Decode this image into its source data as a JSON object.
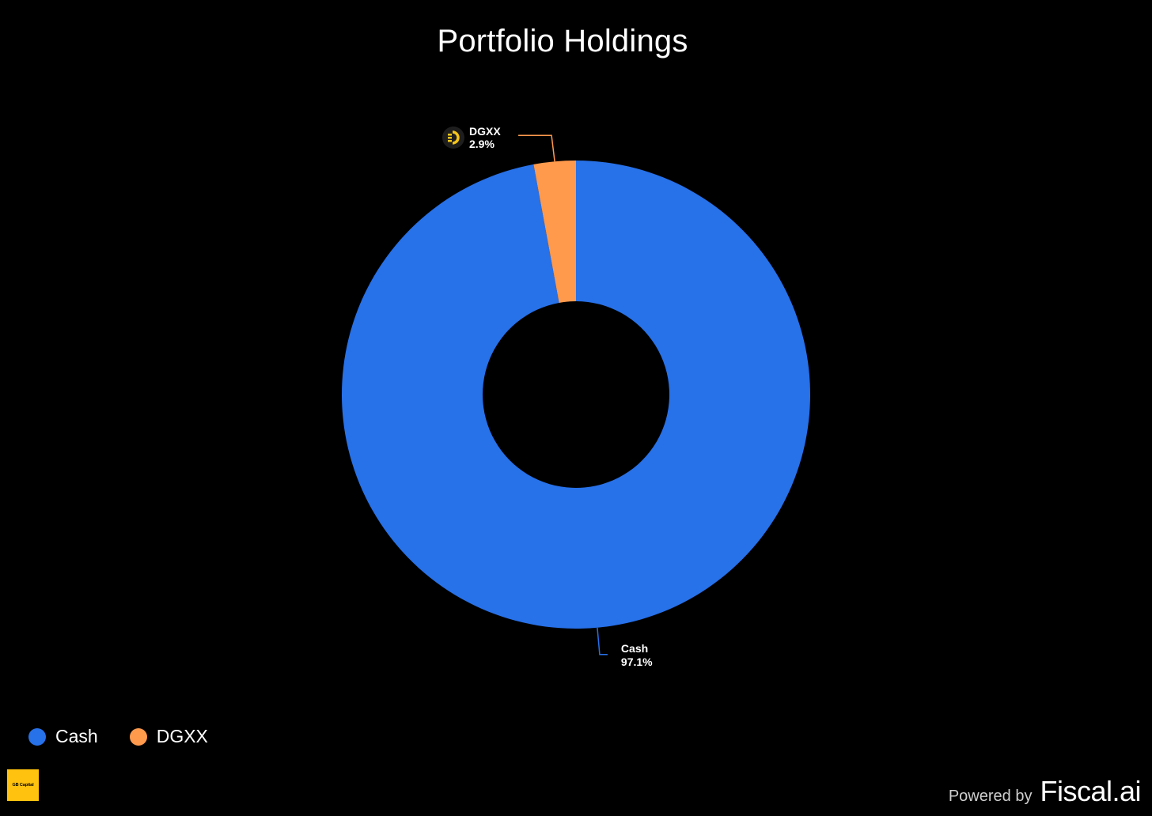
{
  "chart_data": {
    "type": "pie",
    "title": "Portfolio Holdings",
    "donut": true,
    "labels": [
      "Cash",
      "DGXX"
    ],
    "values": [
      97.1,
      2.9
    ],
    "value_labels": [
      "97.1%",
      "2.9%"
    ],
    "colors": [
      "#2771e9",
      "#ff9a4d"
    ],
    "legend_placement": "bottom-left",
    "legend": [
      {
        "label": "Cash",
        "color": "#2771e9"
      },
      {
        "label": "DGXX",
        "color": "#ff9a4d"
      }
    ]
  },
  "footer": {
    "badge_text": "GB Capital",
    "powered_by": "Powered by",
    "brand": "Fiscal.ai"
  }
}
